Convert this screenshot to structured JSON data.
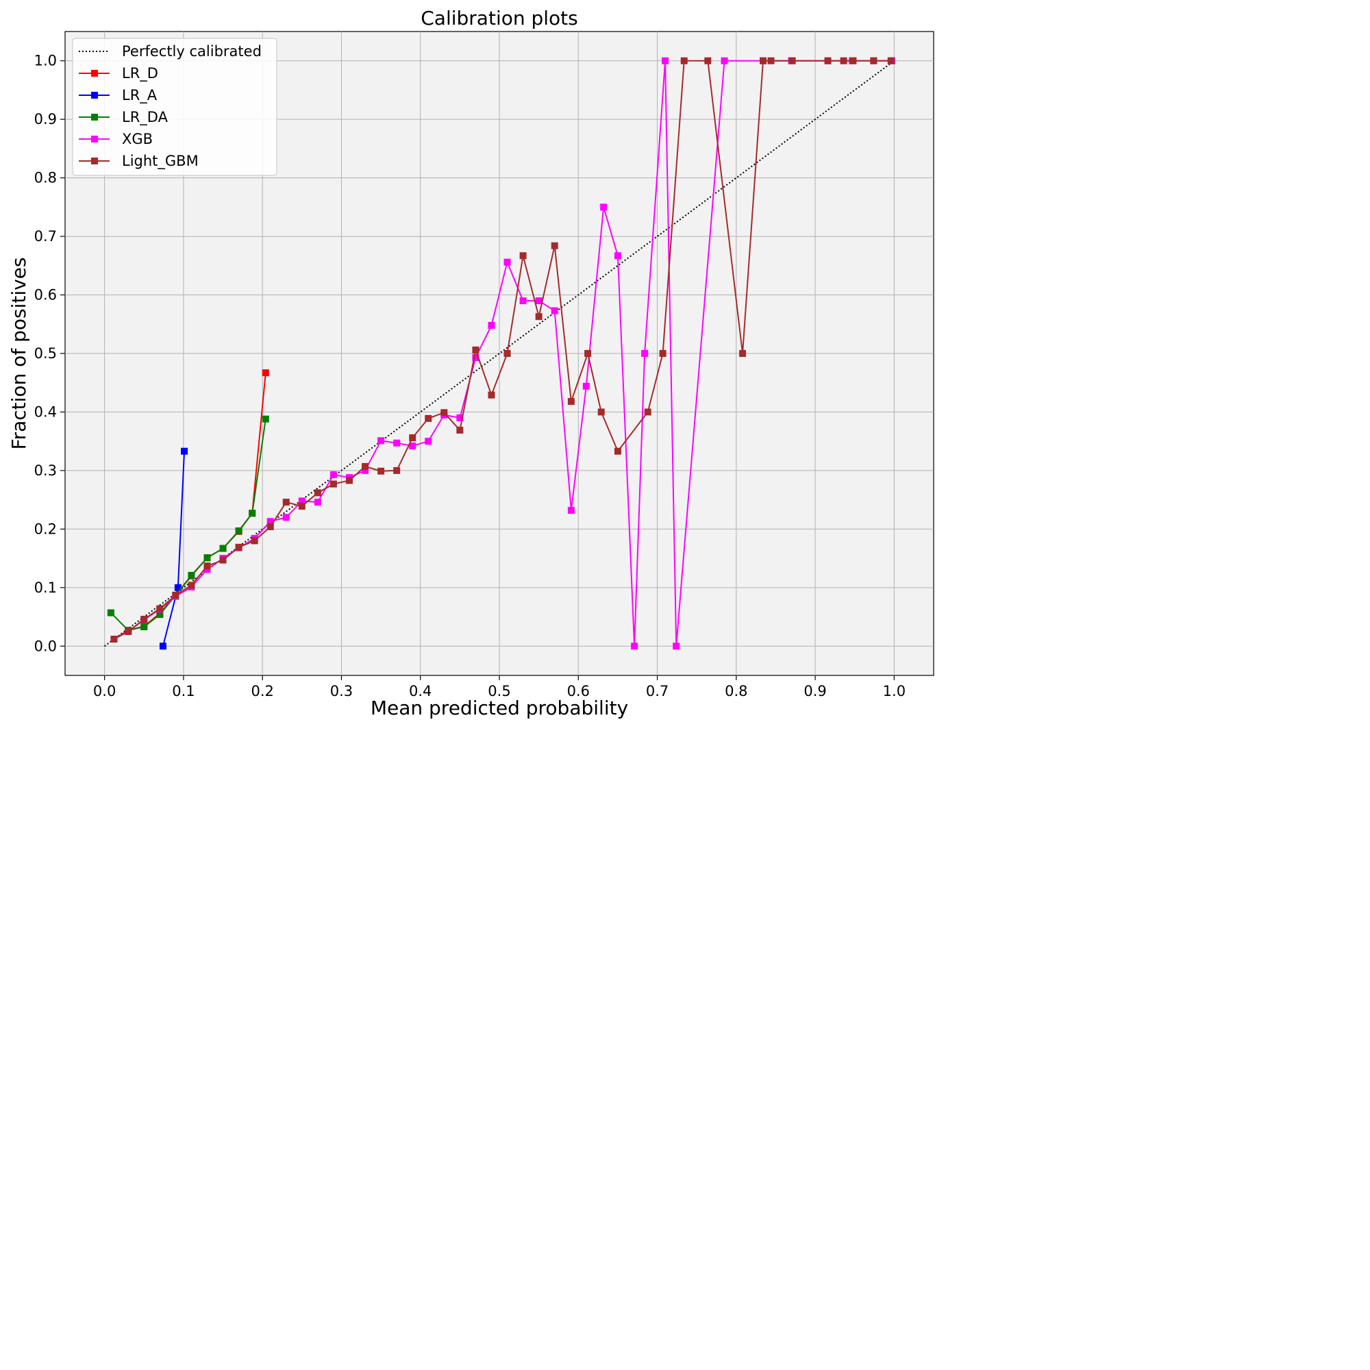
{
  "chart_data": {
    "type": "line",
    "title": "Calibration plots",
    "xlabel": "Mean predicted probability",
    "ylabel": "Fraction of positives",
    "xlim": [
      -0.05,
      1.05
    ],
    "ylim": [
      -0.05,
      1.05
    ],
    "xticks": [
      "0.0",
      "0.1",
      "0.2",
      "0.3",
      "0.4",
      "0.5",
      "0.6",
      "0.7",
      "0.8",
      "0.9",
      "1.0"
    ],
    "yticks": [
      "0.0",
      "0.1",
      "0.2",
      "0.3",
      "0.4",
      "0.5",
      "0.6",
      "0.7",
      "0.8",
      "0.9",
      "1.0"
    ],
    "grid": true,
    "background": "#f2f2f2",
    "legend_position": "top-left",
    "reference_line": {
      "name": "Perfectly calibrated",
      "color": "#000000",
      "style": "dotted",
      "points": [
        [
          0,
          0
        ],
        [
          1,
          1
        ]
      ]
    },
    "series": [
      {
        "name": "LR_D",
        "color": "#ff0000",
        "marker": "square",
        "points": [
          [
            0.012,
            0.012
          ],
          [
            0.03,
            0.027
          ],
          [
            0.05,
            0.034
          ],
          [
            0.07,
            0.056
          ],
          [
            0.09,
            0.087
          ],
          [
            0.11,
            0.12
          ],
          [
            0.13,
            0.151
          ],
          [
            0.15,
            0.167
          ],
          [
            0.17,
            0.196
          ],
          [
            0.187,
            0.227
          ],
          [
            0.204,
            0.467
          ]
        ]
      },
      {
        "name": "LR_A",
        "color": "#0000ff",
        "marker": "square",
        "points": [
          [
            0.074,
            0.0
          ],
          [
            0.093,
            0.1
          ],
          [
            0.101,
            0.333
          ]
        ]
      },
      {
        "name": "LR_DA",
        "color": "#008000",
        "marker": "square",
        "points": [
          [
            0.008,
            0.057
          ],
          [
            0.03,
            0.027
          ],
          [
            0.05,
            0.033
          ],
          [
            0.07,
            0.054
          ],
          [
            0.09,
            0.087
          ],
          [
            0.11,
            0.121
          ],
          [
            0.13,
            0.151
          ],
          [
            0.15,
            0.167
          ],
          [
            0.17,
            0.197
          ],
          [
            0.187,
            0.227
          ],
          [
            0.204,
            0.388
          ]
        ]
      },
      {
        "name": "XGB",
        "color": "#ff00ff",
        "marker": "square",
        "points": [
          [
            0.012,
            0.012
          ],
          [
            0.03,
            0.025
          ],
          [
            0.05,
            0.045
          ],
          [
            0.07,
            0.063
          ],
          [
            0.09,
            0.085
          ],
          [
            0.11,
            0.101
          ],
          [
            0.13,
            0.131
          ],
          [
            0.15,
            0.15
          ],
          [
            0.17,
            0.168
          ],
          [
            0.19,
            0.184
          ],
          [
            0.21,
            0.213
          ],
          [
            0.23,
            0.22
          ],
          [
            0.25,
            0.248
          ],
          [
            0.27,
            0.246
          ],
          [
            0.29,
            0.293
          ],
          [
            0.31,
            0.288
          ],
          [
            0.33,
            0.3
          ],
          [
            0.35,
            0.351
          ],
          [
            0.37,
            0.347
          ],
          [
            0.39,
            0.342
          ],
          [
            0.41,
            0.35
          ],
          [
            0.43,
            0.395
          ],
          [
            0.45,
            0.39
          ],
          [
            0.47,
            0.493
          ],
          [
            0.49,
            0.548
          ],
          [
            0.51,
            0.656
          ],
          [
            0.53,
            0.59
          ],
          [
            0.55,
            0.59
          ],
          [
            0.57,
            0.573
          ],
          [
            0.591,
            0.232
          ],
          [
            0.61,
            0.444
          ],
          [
            0.632,
            0.75
          ],
          [
            0.65,
            0.667
          ],
          [
            0.671,
            0.0
          ],
          [
            0.684,
            0.5
          ],
          [
            0.71,
            1.0
          ],
          [
            0.724,
            0.0
          ],
          [
            0.785,
            1.0
          ],
          [
            0.834,
            1.0
          ],
          [
            0.87,
            1.0
          ],
          [
            0.916,
            1.0
          ],
          [
            0.947,
            1.0
          ],
          [
            0.974,
            1.0
          ],
          [
            0.997,
            1.0
          ]
        ]
      },
      {
        "name": "Light_GBM",
        "color": "#a52a2a",
        "marker": "square",
        "points": [
          [
            0.012,
            0.012
          ],
          [
            0.03,
            0.025
          ],
          [
            0.05,
            0.046
          ],
          [
            0.07,
            0.064
          ],
          [
            0.09,
            0.087
          ],
          [
            0.11,
            0.104
          ],
          [
            0.13,
            0.137
          ],
          [
            0.15,
            0.147
          ],
          [
            0.17,
            0.169
          ],
          [
            0.19,
            0.18
          ],
          [
            0.21,
            0.204
          ],
          [
            0.23,
            0.246
          ],
          [
            0.25,
            0.239
          ],
          [
            0.27,
            0.262
          ],
          [
            0.29,
            0.277
          ],
          [
            0.31,
            0.283
          ],
          [
            0.33,
            0.307
          ],
          [
            0.35,
            0.299
          ],
          [
            0.37,
            0.3
          ],
          [
            0.39,
            0.356
          ],
          [
            0.41,
            0.389
          ],
          [
            0.43,
            0.399
          ],
          [
            0.45,
            0.369
          ],
          [
            0.47,
            0.506
          ],
          [
            0.49,
            0.429
          ],
          [
            0.51,
            0.5
          ],
          [
            0.53,
            0.667
          ],
          [
            0.55,
            0.563
          ],
          [
            0.57,
            0.684
          ],
          [
            0.591,
            0.418
          ],
          [
            0.612,
            0.5
          ],
          [
            0.629,
            0.4
          ],
          [
            0.65,
            0.333
          ],
          [
            0.688,
            0.4
          ],
          [
            0.707,
            0.5
          ],
          [
            0.734,
            1.0
          ],
          [
            0.764,
            1.0
          ],
          [
            0.808,
            0.5
          ],
          [
            0.834,
            1.0
          ],
          [
            0.844,
            1.0
          ],
          [
            0.871,
            1.0
          ],
          [
            0.916,
            1.0
          ],
          [
            0.936,
            1.0
          ],
          [
            0.948,
            1.0
          ],
          [
            0.974,
            1.0
          ],
          [
            0.996,
            1.0
          ]
        ]
      }
    ]
  }
}
